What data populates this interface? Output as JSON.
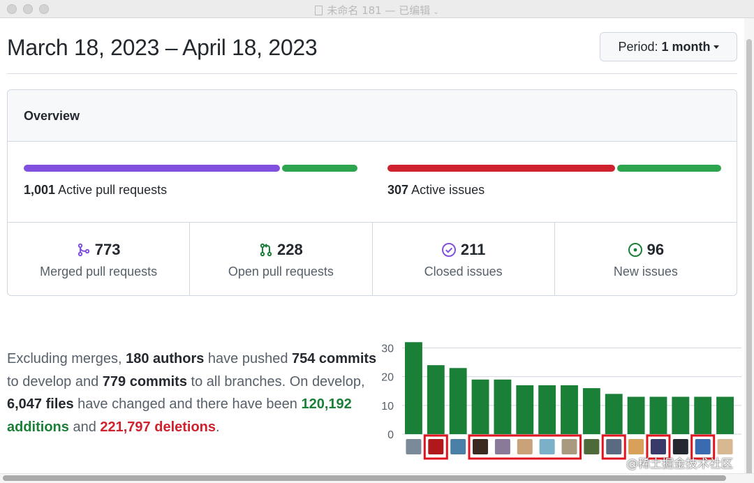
{
  "window": {
    "title": "未命名 181",
    "subtitle": "— 已编辑"
  },
  "header": {
    "date_range": "March 18, 2023 – April 18, 2023",
    "period_prefix": "Period:",
    "period_value": "1 month"
  },
  "overview": {
    "title": "Overview",
    "pull_requests": {
      "count": "1,001",
      "label": "Active pull requests",
      "merged_fraction": 0.772,
      "colors": [
        "#8250df",
        "#2da44e"
      ]
    },
    "issues": {
      "count": "307",
      "label": "Active issues",
      "closed_fraction": 0.687,
      "colors": [
        "#cf222e",
        "#2da44e"
      ]
    },
    "stats": [
      {
        "icon": "git-merge-icon",
        "color": "#8250df",
        "value": "773",
        "label": "Merged pull requests"
      },
      {
        "icon": "git-pull-request-icon",
        "color": "#1a7f37",
        "value": "228",
        "label": "Open pull requests"
      },
      {
        "icon": "issue-closed-icon",
        "color": "#8250df",
        "value": "211",
        "label": "Closed issues"
      },
      {
        "icon": "issue-opened-icon",
        "color": "#1a7f37",
        "value": "96",
        "label": "New issues"
      }
    ]
  },
  "summary": {
    "t1": "Excluding merges, ",
    "authors": "180 authors",
    "t2": " have pushed ",
    "commits_develop": "754 commits",
    "t3": " to develop and ",
    "commits_all": "779 commits",
    "t4": " to all branches. On develop, ",
    "files": "6,047 files",
    "t5": " have changed and there have been ",
    "additions": "120,192 additions",
    "t6": " and ",
    "deletions": "221,797 deletions",
    "t7": "."
  },
  "chart_data": {
    "type": "bar",
    "values": [
      32,
      24,
      23,
      19,
      19,
      17,
      17,
      17,
      16,
      14,
      13,
      13,
      13,
      13,
      13
    ],
    "yticks": [
      0,
      10,
      20,
      30
    ],
    "ylim": [
      0,
      34
    ],
    "bar_color": "#1a7f37",
    "grid": true,
    "avatar_colors": [
      "#7a8a99",
      "#b0181c",
      "#4a7fa8",
      "#3a2a20",
      "#8a7a9a",
      "#c9a27a",
      "#7ab0c8",
      "#a89a80",
      "#4f6a3a",
      "#5a6a80",
      "#d9a05a",
      "#3a3a6a",
      "#24292f",
      "#3a6ab0",
      "#d8b890"
    ],
    "highlight_groups": [
      [
        1,
        1
      ],
      [
        3,
        7
      ],
      [
        9,
        9
      ],
      [
        11,
        11
      ],
      [
        13,
        13
      ]
    ],
    "highlight_color": "#e0141e"
  },
  "watermark": "@稀土掘金技术社区"
}
